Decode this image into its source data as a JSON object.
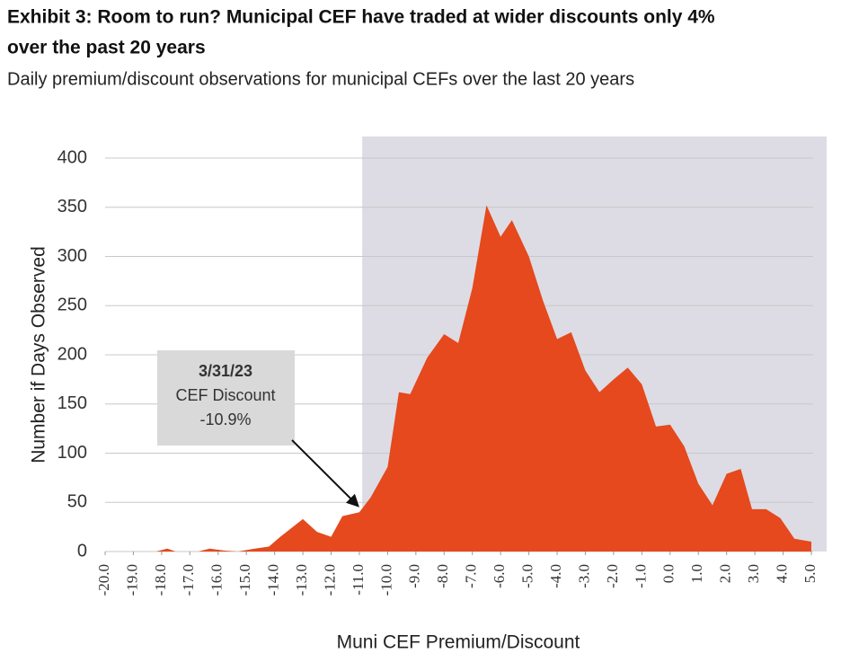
{
  "chart_data": {
    "type": "area",
    "title_lines": [
      "Exhibit 3: Room to run? Municipal CEF have traded at wider discounts only 4%",
      "over the past 20 years"
    ],
    "subtitle": "Daily premium/discount observations for municipal CEFs over the last 20 years",
    "x_label": "Muni CEF Premium/Discount",
    "y_label": "Number if Days Observed",
    "color": "#e5491d",
    "shade_color": "#dddce4",
    "shaded_from": -10.9,
    "x": [
      -20,
      -18.2,
      -17.8,
      -17.5,
      -16.7,
      -16.3,
      -15.8,
      -15.3,
      -14.7,
      -14.2,
      -13.8,
      -13.0,
      -12.5,
      -12.0,
      -11.6,
      -11.0,
      -10.6,
      -10.0,
      -9.6,
      -9.2,
      -8.6,
      -8.0,
      -7.5,
      -7.0,
      -6.5,
      -6.0,
      -5.6,
      -5.0,
      -4.5,
      -4.0,
      -3.5,
      -3.0,
      -2.5,
      -2.0,
      -1.5,
      -1.0,
      -0.5,
      0.0,
      0.5,
      1.0,
      1.5,
      2.0,
      2.5,
      2.9,
      3.4,
      3.9,
      4.4,
      5.0
    ],
    "values": [
      0,
      0,
      3,
      0,
      0,
      3,
      1,
      0,
      3,
      5,
      15,
      33,
      20,
      15,
      36,
      40,
      55,
      86,
      162,
      160,
      197,
      221,
      212,
      268,
      352,
      320,
      337,
      300,
      255,
      216,
      223,
      184,
      162,
      175,
      187,
      170,
      127,
      129,
      107,
      69,
      47,
      79,
      84,
      43,
      43,
      34,
      13,
      10
    ],
    "xlim": [
      -20,
      5
    ],
    "ylim": [
      0,
      400
    ],
    "yticks": [
      0,
      50,
      100,
      150,
      200,
      250,
      300,
      350,
      400
    ],
    "xticks": [
      {
        "value": -20,
        "label": "-20.0"
      },
      {
        "value": -19,
        "label": "-19.0"
      },
      {
        "value": -18,
        "label": "-18.0"
      },
      {
        "value": -17,
        "label": "-17.0"
      },
      {
        "value": -16,
        "label": "-16.0"
      },
      {
        "value": -15,
        "label": "-15.0"
      },
      {
        "value": -14,
        "label": "-14.0"
      },
      {
        "value": -13,
        "label": "-13.0"
      },
      {
        "value": -12,
        "label": "-12.0"
      },
      {
        "value": -11,
        "label": "-11.0"
      },
      {
        "value": -10,
        "label": "-10.0"
      },
      {
        "value": -9,
        "label": "-9.0"
      },
      {
        "value": -8,
        "label": "-8.0"
      },
      {
        "value": -7,
        "label": "-7.0"
      },
      {
        "value": -6,
        "label": "-6.0"
      },
      {
        "value": -5,
        "label": "-5.0"
      },
      {
        "value": -4,
        "label": "-4.0"
      },
      {
        "value": -3,
        "label": "-3.0"
      },
      {
        "value": -2,
        "label": "-2.0"
      },
      {
        "value": -1,
        "label": "-1.0"
      },
      {
        "value": 0,
        "label": "0.0"
      },
      {
        "value": 1,
        "label": "1.0"
      },
      {
        "value": 2,
        "label": "2.0"
      },
      {
        "value": 3,
        "label": "3.0"
      },
      {
        "value": 4,
        "label": "4.0"
      },
      {
        "value": 5,
        "label": "5.0"
      }
    ],
    "grid": true,
    "annotation": {
      "lines": [
        "3/31/23",
        "CEF Discount",
        "-10.9%"
      ],
      "x": -11.0,
      "y": 45
    }
  }
}
